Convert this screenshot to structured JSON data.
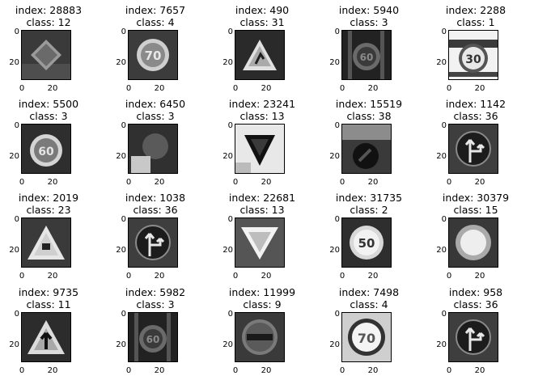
{
  "chart_data": {
    "type": "image_grid",
    "rows": 4,
    "cols": 5,
    "axis_ticks": {
      "x": [
        "0",
        "20"
      ],
      "y": [
        "0",
        "20"
      ]
    },
    "panels": [
      {
        "index": 28883,
        "class": 12,
        "index_label": "index: 28883",
        "class_label": "class: 12",
        "sign": "diamond"
      },
      {
        "index": 7657,
        "class": 4,
        "index_label": "index: 7657",
        "class_label": "class: 4",
        "sign": "speed-70"
      },
      {
        "index": 490,
        "class": 31,
        "index_label": "index: 490",
        "class_label": "class: 31",
        "sign": "triangle-deer"
      },
      {
        "index": 5940,
        "class": 3,
        "index_label": "index: 5940",
        "class_label": "class: 3",
        "sign": "speed-60-dark"
      },
      {
        "index": 2288,
        "class": 1,
        "index_label": "index: 2288",
        "class_label": "class: 1",
        "sign": "speed-30"
      },
      {
        "index": 5500,
        "class": 3,
        "index_label": "index: 5500",
        "class_label": "class: 3",
        "sign": "speed-60"
      },
      {
        "index": 6450,
        "class": 3,
        "index_label": "index: 6450",
        "class_label": "class: 3",
        "sign": "blurry-dark"
      },
      {
        "index": 23241,
        "class": 13,
        "index_label": "index: 23241",
        "class_label": "class: 13",
        "sign": "yield-dark"
      },
      {
        "index": 15519,
        "class": 38,
        "index_label": "index: 15519",
        "class_label": "class: 38",
        "sign": "blurry-arrow"
      },
      {
        "index": 1142,
        "class": 36,
        "index_label": "index: 1142",
        "class_label": "class: 36",
        "sign": "straight-or-right"
      },
      {
        "index": 2019,
        "class": 23,
        "index_label": "index: 2019",
        "class_label": "class: 23",
        "sign": "triangle-slippery"
      },
      {
        "index": 1038,
        "class": 36,
        "index_label": "index: 1038",
        "class_label": "class: 36",
        "sign": "straight-or-right"
      },
      {
        "index": 22681,
        "class": 13,
        "index_label": "index: 22681",
        "class_label": "class: 13",
        "sign": "yield"
      },
      {
        "index": 31735,
        "class": 2,
        "index_label": "index: 31735",
        "class_label": "class: 2",
        "sign": "speed-50"
      },
      {
        "index": 30379,
        "class": 15,
        "index_label": "index: 30379",
        "class_label": "class: 15",
        "sign": "bright-circle"
      },
      {
        "index": 9735,
        "class": 11,
        "index_label": "index: 9735",
        "class_label": "class: 11",
        "sign": "triangle-arrow"
      },
      {
        "index": 5982,
        "class": 3,
        "index_label": "index: 5982",
        "class_label": "class: 3",
        "sign": "speed-60-dark"
      },
      {
        "index": 11999,
        "class": 9,
        "index_label": "index: 11999",
        "class_label": "class: 9",
        "sign": "no-entry"
      },
      {
        "index": 7498,
        "class": 4,
        "index_label": "index: 7498",
        "class_label": "class: 4",
        "sign": "speed-70-bright"
      },
      {
        "index": 958,
        "class": 36,
        "index_label": "index: 958",
        "class_label": "class: 36",
        "sign": "straight-or-right"
      }
    ]
  }
}
